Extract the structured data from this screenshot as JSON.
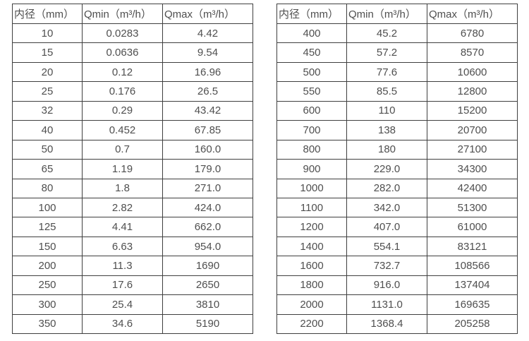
{
  "page": {
    "background": "#ffffff",
    "border_color": "#3f3f3f",
    "text_color": "#4f4f4f"
  },
  "tables": [
    {
      "id": "diameter-flow-table-small",
      "headers": [
        "内径（mm）",
        "Qmin（m³/h）",
        "Qmax（m³/h）"
      ],
      "rows": [
        [
          "10",
          "0.0283",
          "4.42"
        ],
        [
          "15",
          "0.0636",
          "9.54"
        ],
        [
          "20",
          "0.12",
          "16.96"
        ],
        [
          "25",
          "0.176",
          "26.5"
        ],
        [
          "32",
          "0.29",
          "43.42"
        ],
        [
          "40",
          "0.452",
          "67.85"
        ],
        [
          "50",
          "0.7",
          "160.0"
        ],
        [
          "65",
          "1.19",
          "179.0"
        ],
        [
          "80",
          "1.8",
          "271.0"
        ],
        [
          "100",
          "2.82",
          "424.0"
        ],
        [
          "125",
          "4.41",
          "662.0"
        ],
        [
          "150",
          "6.63",
          "954.0"
        ],
        [
          "200",
          "11.3",
          "1690"
        ],
        [
          "250",
          "17.6",
          "2650"
        ],
        [
          "300",
          "25.4",
          "3810"
        ],
        [
          "350",
          "34.6",
          "5190"
        ]
      ]
    },
    {
      "id": "diameter-flow-table-large",
      "headers": [
        "内径（mm）",
        "Qmin（m³/h）",
        "Qmax（m³/h）"
      ],
      "rows": [
        [
          "400",
          "45.2",
          "6780"
        ],
        [
          "450",
          "57.2",
          "8570"
        ],
        [
          "500",
          "77.6",
          "10600"
        ],
        [
          "550",
          "85.5",
          "12800"
        ],
        [
          "600",
          "110",
          "15200"
        ],
        [
          "700",
          "138",
          "20700"
        ],
        [
          "800",
          "180",
          "27100"
        ],
        [
          "900",
          "229.0",
          "34300"
        ],
        [
          "1000",
          "282.0",
          "42400"
        ],
        [
          "1100",
          "342.0",
          "51300"
        ],
        [
          "1200",
          "407.0",
          "61000"
        ],
        [
          "1400",
          "554.1",
          "83121"
        ],
        [
          "1600",
          "732.7",
          "108566"
        ],
        [
          "1800",
          "916.0",
          "137404"
        ],
        [
          "2000",
          "1131.0",
          "169635"
        ],
        [
          "2200",
          "1368.4",
          "205258"
        ]
      ]
    }
  ]
}
